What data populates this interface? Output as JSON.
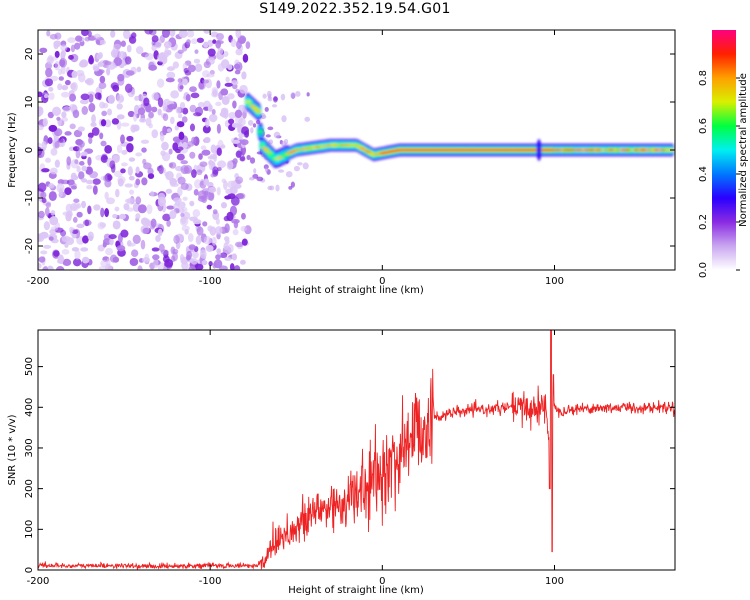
{
  "title": "S149.2022.352.19.54.G01",
  "chart_data": [
    {
      "type": "heatmap",
      "xlabel": "Height of straight line (km)",
      "ylabel": "Frequency (Hz)",
      "xlim": [
        -200,
        170
      ],
      "ylim": [
        -25,
        25
      ],
      "xticks": [
        -200,
        -100,
        0,
        100
      ],
      "yticks": [
        -20,
        -10,
        0,
        10,
        20
      ],
      "colorbar": {
        "label": "Normalized spectral amplitude",
        "range": [
          0,
          1
        ],
        "ticks": [
          "0.0",
          "0.2",
          "0.4",
          "0.6",
          "0.8"
        ],
        "colors": [
          "#ffffff",
          "#c9a6f0",
          "#8a2be2",
          "#2a00ff",
          "#0078ff",
          "#00f0f0",
          "#00ff40",
          "#d8f000",
          "#ffa000",
          "#ff2000",
          "#ff0080"
        ]
      },
      "regions": [
        {
          "x_range": [
            -200,
            -78
          ],
          "y_range": [
            -25,
            25
          ],
          "amplitude": 0.1,
          "description_value": "noise"
        },
        {
          "x_range": [
            -78,
            -60
          ],
          "y_range": [
            -8,
            12
          ],
          "amplitude": 0.5
        },
        {
          "x_range": [
            -60,
            165
          ],
          "y_center": 0,
          "amplitude": 0.9
        }
      ],
      "signal_trace": [
        {
          "x": -78,
          "y": 10
        },
        {
          "x": -72,
          "y": 8
        },
        {
          "x": -70,
          "y": 1
        },
        {
          "x": -62,
          "y": -2
        },
        {
          "x": -50,
          "y": 0
        },
        {
          "x": -30,
          "y": 1
        },
        {
          "x": -15,
          "y": 1
        },
        {
          "x": -5,
          "y": -1
        },
        {
          "x": 10,
          "y": 0
        },
        {
          "x": 90,
          "y": 0
        },
        {
          "x": 100,
          "y": 0
        },
        {
          "x": 165,
          "y": 0
        }
      ]
    },
    {
      "type": "line",
      "xlabel": "Height of straight line (km)",
      "ylabel": "SNR (10 * v/v)",
      "xlim": [
        -200,
        170
      ],
      "ylim": [
        0,
        590
      ],
      "xticks": [
        -200,
        -100,
        0,
        100
      ],
      "yticks": [
        0,
        100,
        200,
        300,
        400,
        500
      ],
      "color": "#ee2222",
      "series": [
        {
          "x": [
            -200,
            -180,
            -160,
            -140,
            -120,
            -100,
            -90,
            -80,
            -72,
            -68,
            -65,
            -60,
            -55,
            -50,
            -45,
            -40,
            -35,
            -30,
            -25,
            -20,
            -15,
            -10,
            -5,
            0,
            5,
            10,
            15,
            20,
            25,
            30,
            40,
            50,
            60,
            70,
            75,
            80,
            85,
            90,
            95,
            97,
            99,
            101,
            105,
            110,
            120,
            130,
            140,
            150,
            160,
            170
          ],
          "y": [
            12,
            10,
            11,
            9,
            10,
            11,
            10,
            11,
            10,
            25,
            60,
            80,
            95,
            100,
            120,
            140,
            150,
            155,
            165,
            170,
            185,
            200,
            220,
            235,
            255,
            285,
            320,
            345,
            365,
            375,
            385,
            392,
            395,
            398,
            400,
            395,
            398,
            398,
            400,
            300,
            400,
            395,
            392,
            395,
            398,
            398,
            400,
            398,
            400,
            400
          ]
        }
      ]
    }
  ]
}
